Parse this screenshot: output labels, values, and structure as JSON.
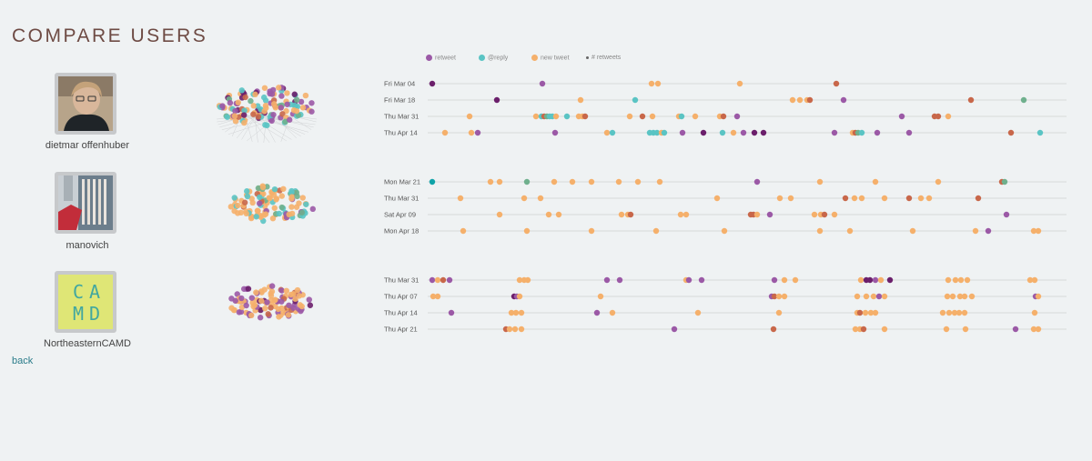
{
  "page": {
    "title": "COMPARE USERS",
    "back_label": "back"
  },
  "legend": {
    "items": [
      {
        "label": "retweet",
        "color": "#9b59a6",
        "kind": "dot"
      },
      {
        "label": "@reply",
        "color": "#5ac4c4",
        "kind": "dot"
      },
      {
        "label": "new tweet",
        "color": "#f5b06b",
        "kind": "dot"
      },
      {
        "label": "# retweets",
        "color": "#666666",
        "kind": "small"
      }
    ]
  },
  "colors": {
    "retweet": "#9b59a6",
    "reply": "#5ac4c4",
    "new": "#f5b06b",
    "dark": "#6b1f6b",
    "red": "#c8674a",
    "teal": "#0fa3a8",
    "green": "#6fb08d"
  },
  "users": [
    {
      "name": "dietmar offenhuber",
      "avatar_icon": "person-photo-icon",
      "rows": [
        {
          "date": "Fri Mar 04",
          "dots": [
            [
              475,
              "dark"
            ],
            [
              596,
              "retweet"
            ],
            [
              716,
              "new"
            ],
            [
              723,
              "new"
            ],
            [
              813,
              "new"
            ],
            [
              919,
              "red"
            ]
          ]
        },
        {
          "date": "Fri Mar 18",
          "dots": [
            [
              546,
              "dark"
            ],
            [
              638,
              "new"
            ],
            [
              698,
              "reply"
            ],
            [
              871,
              "new"
            ],
            [
              879,
              "new"
            ],
            [
              887,
              "new"
            ],
            [
              890,
              "red"
            ],
            [
              927,
              "retweet"
            ],
            [
              1067,
              "red"
            ],
            [
              1125,
              "green"
            ]
          ]
        },
        {
          "date": "Thu Mar 31",
          "dots": [
            [
              516,
              "new"
            ],
            [
              589,
              "new"
            ],
            [
              595,
              "reply"
            ],
            [
              598,
              "red"
            ],
            [
              601,
              "green"
            ],
            [
              604,
              "reply"
            ],
            [
              607,
              "reply"
            ],
            [
              611,
              "new"
            ],
            [
              623,
              "reply"
            ],
            [
              636,
              "new"
            ],
            [
              640,
              "new"
            ],
            [
              643,
              "red"
            ],
            [
              692,
              "new"
            ],
            [
              706,
              "red"
            ],
            [
              717,
              "new"
            ],
            [
              746,
              "new"
            ],
            [
              749,
              "reply"
            ],
            [
              764,
              "new"
            ],
            [
              791,
              "new"
            ],
            [
              795,
              "red"
            ],
            [
              810,
              "retweet"
            ],
            [
              991,
              "retweet"
            ],
            [
              1027,
              "red"
            ],
            [
              1031,
              "red"
            ],
            [
              1042,
              "new"
            ]
          ]
        },
        {
          "date": "Thu Apr 14",
          "dots": [
            [
              489,
              "new"
            ],
            [
              518,
              "new"
            ],
            [
              525,
              "retweet"
            ],
            [
              610,
              "retweet"
            ],
            [
              667,
              "new"
            ],
            [
              673,
              "reply"
            ],
            [
              714,
              "reply"
            ],
            [
              718,
              "reply"
            ],
            [
              722,
              "reply"
            ],
            [
              727,
              "new"
            ],
            [
              730,
              "reply"
            ],
            [
              750,
              "retweet"
            ],
            [
              773,
              "dark"
            ],
            [
              794,
              "reply"
            ],
            [
              806,
              "new"
            ],
            [
              817,
              "retweet"
            ],
            [
              829,
              "dark"
            ],
            [
              839,
              "dark"
            ],
            [
              917,
              "retweet"
            ],
            [
              937,
              "new"
            ],
            [
              940,
              "red"
            ],
            [
              943,
              "green"
            ],
            [
              947,
              "reply"
            ],
            [
              964,
              "retweet"
            ],
            [
              999,
              "retweet"
            ],
            [
              1111,
              "red"
            ],
            [
              1143,
              "reply"
            ]
          ]
        }
      ]
    },
    {
      "name": "manovich",
      "avatar_icon": "library-photo-icon",
      "rows": [
        {
          "date": "Mon Mar 21",
          "dots": [
            [
              475,
              "teal"
            ],
            [
              539,
              "new"
            ],
            [
              549,
              "new"
            ],
            [
              579,
              "green"
            ],
            [
              609,
              "new"
            ],
            [
              629,
              "new"
            ],
            [
              650,
              "new"
            ],
            [
              680,
              "new"
            ],
            [
              701,
              "new"
            ],
            [
              725,
              "new"
            ],
            [
              832,
              "retweet"
            ],
            [
              901,
              "new"
            ],
            [
              962,
              "new"
            ],
            [
              1031,
              "new"
            ],
            [
              1101,
              "red"
            ],
            [
              1104,
              "green"
            ]
          ]
        },
        {
          "date": "Thu Mar 31",
          "dots": [
            [
              506,
              "new"
            ],
            [
              576,
              "new"
            ],
            [
              594,
              "new"
            ],
            [
              788,
              "new"
            ],
            [
              857,
              "new"
            ],
            [
              869,
              "new"
            ],
            [
              929,
              "red"
            ],
            [
              939,
              "new"
            ],
            [
              947,
              "new"
            ],
            [
              972,
              "new"
            ],
            [
              999,
              "red"
            ],
            [
              1012,
              "new"
            ],
            [
              1021,
              "new"
            ],
            [
              1075,
              "red"
            ]
          ]
        },
        {
          "date": "Sat Apr 09",
          "dots": [
            [
              549,
              "new"
            ],
            [
              603,
              "new"
            ],
            [
              614,
              "new"
            ],
            [
              683,
              "new"
            ],
            [
              690,
              "new"
            ],
            [
              693,
              "red"
            ],
            [
              748,
              "new"
            ],
            [
              754,
              "new"
            ],
            [
              825,
              "red"
            ],
            [
              828,
              "red"
            ],
            [
              832,
              "new"
            ],
            [
              846,
              "retweet"
            ],
            [
              895,
              "new"
            ],
            [
              902,
              "new"
            ],
            [
              906,
              "red"
            ],
            [
              917,
              "new"
            ],
            [
              1106,
              "retweet"
            ]
          ]
        },
        {
          "date": "Mon Apr 18",
          "dots": [
            [
              509,
              "new"
            ],
            [
              579,
              "new"
            ],
            [
              650,
              "new"
            ],
            [
              721,
              "new"
            ],
            [
              796,
              "new"
            ],
            [
              901,
              "new"
            ],
            [
              934,
              "new"
            ],
            [
              1003,
              "new"
            ],
            [
              1072,
              "new"
            ],
            [
              1086,
              "retweet"
            ],
            [
              1136,
              "new"
            ],
            [
              1141,
              "new"
            ]
          ]
        }
      ]
    },
    {
      "name": "NortheasternCAMD",
      "avatar_icon": "camd-logo-icon",
      "rows": [
        {
          "date": "Thu Mar 31",
          "dots": [
            [
              475,
              "retweet"
            ],
            [
              481,
              "new"
            ],
            [
              487,
              "red"
            ],
            [
              494,
              "retweet"
            ],
            [
              571,
              "new"
            ],
            [
              576,
              "new"
            ],
            [
              580,
              "new"
            ],
            [
              667,
              "retweet"
            ],
            [
              681,
              "retweet"
            ],
            [
              754,
              "new"
            ],
            [
              757,
              "retweet"
            ],
            [
              771,
              "retweet"
            ],
            [
              851,
              "retweet"
            ],
            [
              862,
              "new"
            ],
            [
              874,
              "new"
            ],
            [
              946,
              "new"
            ],
            [
              952,
              "dark"
            ],
            [
              956,
              "dark"
            ],
            [
              962,
              "retweet"
            ],
            [
              968,
              "new"
            ],
            [
              978,
              "dark"
            ],
            [
              1042,
              "new"
            ],
            [
              1050,
              "new"
            ],
            [
              1056,
              "new"
            ],
            [
              1063,
              "new"
            ],
            [
              1132,
              "new"
            ],
            [
              1137,
              "new"
            ]
          ]
        },
        {
          "date": "Thu Apr 07",
          "dots": [
            [
              476,
              "new"
            ],
            [
              481,
              "new"
            ],
            [
              565,
              "dark"
            ],
            [
              568,
              "retweet"
            ],
            [
              571,
              "new"
            ],
            [
              660,
              "new"
            ],
            [
              848,
              "retweet"
            ],
            [
              851,
              "red"
            ],
            [
              856,
              "new"
            ],
            [
              862,
              "new"
            ],
            [
              942,
              "new"
            ],
            [
              952,
              "new"
            ],
            [
              960,
              "new"
            ],
            [
              966,
              "retweet"
            ],
            [
              972,
              "new"
            ],
            [
              1041,
              "new"
            ],
            [
              1047,
              "new"
            ],
            [
              1055,
              "new"
            ],
            [
              1060,
              "new"
            ],
            [
              1068,
              "new"
            ],
            [
              1138,
              "retweet"
            ],
            [
              1141,
              "new"
            ]
          ]
        },
        {
          "date": "Thu Apr 14",
          "dots": [
            [
              496,
              "retweet"
            ],
            [
              562,
              "new"
            ],
            [
              567,
              "new"
            ],
            [
              573,
              "new"
            ],
            [
              656,
              "retweet"
            ],
            [
              673,
              "new"
            ],
            [
              767,
              "new"
            ],
            [
              856,
              "new"
            ],
            [
              942,
              "new"
            ],
            [
              945,
              "red"
            ],
            [
              951,
              "new"
            ],
            [
              957,
              "new"
            ],
            [
              962,
              "new"
            ],
            [
              1036,
              "new"
            ],
            [
              1043,
              "new"
            ],
            [
              1049,
              "new"
            ],
            [
              1054,
              "new"
            ],
            [
              1060,
              "new"
            ],
            [
              1137,
              "new"
            ]
          ]
        },
        {
          "date": "Thu Apr 21",
          "dots": [
            [
              556,
              "red"
            ],
            [
              560,
              "new"
            ],
            [
              566,
              "new"
            ],
            [
              573,
              "new"
            ],
            [
              741,
              "retweet"
            ],
            [
              850,
              "red"
            ],
            [
              940,
              "new"
            ],
            [
              945,
              "new"
            ],
            [
              949,
              "red"
            ],
            [
              972,
              "new"
            ],
            [
              1040,
              "new"
            ],
            [
              1061,
              "new"
            ],
            [
              1116,
              "retweet"
            ],
            [
              1136,
              "new"
            ],
            [
              1141,
              "new"
            ]
          ]
        }
      ]
    }
  ]
}
